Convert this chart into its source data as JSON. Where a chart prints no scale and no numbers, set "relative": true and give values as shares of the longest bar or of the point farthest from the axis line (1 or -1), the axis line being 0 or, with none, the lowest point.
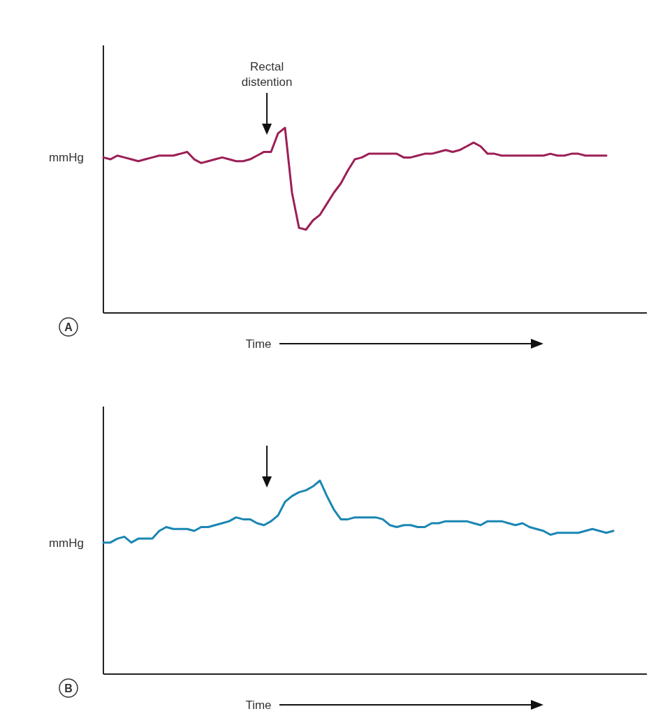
{
  "chart_data": [
    {
      "type": "line",
      "title": "A",
      "xlabel": "Time",
      "ylabel": "mmHg",
      "annotations": [
        "Rectal distention"
      ],
      "relative": true,
      "categories": [
        null,
        null,
        null,
        null,
        null,
        null,
        null,
        null,
        null,
        null,
        null,
        null,
        null,
        null,
        null,
        null,
        null,
        null,
        null,
        null,
        null,
        null,
        null,
        null,
        null,
        null,
        null,
        null,
        null,
        null,
        null,
        null,
        null,
        null,
        null,
        null,
        null,
        null,
        null,
        null,
        null,
        null,
        null,
        null,
        null,
        null,
        null,
        null,
        null,
        null,
        null,
        null,
        null,
        null,
        null,
        null,
        null,
        null,
        null,
        null,
        null,
        null,
        null,
        null,
        null,
        null,
        null,
        null,
        null,
        null,
        null,
        null,
        null,
        null,
        null,
        null,
        null,
        null
      ],
      "series": [
        {
          "color": "#9c1f56",
          "values": [
            0.84,
            0.83,
            0.85,
            0.84,
            0.83,
            0.82,
            0.83,
            0.84,
            0.85,
            0.85,
            0.85,
            0.86,
            0.87,
            0.83,
            0.81,
            0.82,
            0.83,
            0.84,
            0.83,
            0.82,
            0.82,
            0.83,
            0.85,
            0.87,
            0.87,
            0.97,
            1,
            0.65,
            0.46,
            0.45,
            0.5,
            0.53,
            0.59,
            0.65,
            0.7,
            0.77,
            0.83,
            0.84,
            0.86,
            0.86,
            0.86,
            0.86,
            0.86,
            0.84,
            0.84,
            0.85,
            0.86,
            0.86,
            0.87,
            0.88,
            0.87,
            0.88,
            0.9,
            0.92,
            0.9,
            0.86,
            0.86,
            0.85,
            0.85,
            0.85,
            0.85,
            0.85,
            0.85,
            0.85,
            0.86,
            0.85,
            0.85,
            0.86,
            0.86,
            0.85,
            0.85,
            0.85,
            0.85,
            null,
            null,
            null,
            null,
            null
          ]
        }
      ]
    },
    {
      "type": "line",
      "title": "B",
      "xlabel": "Time",
      "ylabel": "mmHg",
      "relative": true,
      "categories": [
        null,
        null,
        null,
        null,
        null,
        null,
        null,
        null,
        null,
        null,
        null,
        null,
        null,
        null,
        null,
        null,
        null,
        null,
        null,
        null,
        null,
        null,
        null,
        null,
        null,
        null,
        null,
        null,
        null,
        null,
        null,
        null,
        null,
        null,
        null,
        null,
        null,
        null,
        null,
        null,
        null,
        null,
        null,
        null,
        null,
        null,
        null,
        null,
        null,
        null,
        null,
        null,
        null,
        null,
        null,
        null,
        null,
        null,
        null,
        null,
        null,
        null,
        null,
        null,
        null,
        null,
        null,
        null,
        null,
        null,
        null,
        null,
        null,
        null,
        null,
        null,
        null,
        null
      ],
      "series": [
        {
          "color": "#1a86b3",
          "values": [
            0.68,
            0.68,
            0.7,
            0.71,
            0.68,
            0.7,
            0.7,
            0.7,
            0.74,
            0.76,
            0.75,
            0.75,
            0.75,
            0.74,
            0.76,
            0.76,
            0.77,
            0.78,
            0.79,
            0.81,
            0.8,
            0.8,
            0.78,
            0.77,
            0.79,
            0.82,
            0.89,
            0.92,
            0.94,
            0.95,
            0.97,
            1,
            0.92,
            0.85,
            0.8,
            0.8,
            0.81,
            0.81,
            0.81,
            0.81,
            0.8,
            0.77,
            0.76,
            0.77,
            0.77,
            0.76,
            0.76,
            0.78,
            0.78,
            0.79,
            0.79,
            0.79,
            0.79,
            0.78,
            0.77,
            0.79,
            0.79,
            0.79,
            0.78,
            0.77,
            0.78,
            0.76,
            0.75,
            0.74,
            0.72,
            0.73,
            0.73,
            0.73,
            0.73,
            0.74,
            0.75,
            0.74,
            0.73,
            0.74,
            null,
            null,
            null,
            null
          ]
        }
      ]
    }
  ]
}
